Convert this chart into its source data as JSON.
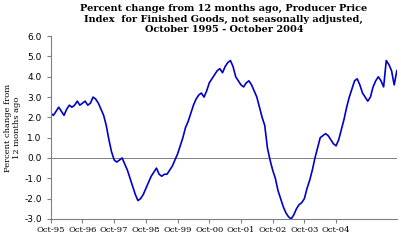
{
  "title": "Percent change from 12 months ago, Producer Price\nIndex  for Finished Goods, not seasonally adjusted,\nOctober 1995 - October 2004",
  "ylabel": "Percent change from\n12 months ago",
  "line_color": "#0000CC",
  "line_width": 1.2,
  "background_color": "#ffffff",
  "ylim": [
    -3.0,
    6.0
  ],
  "yticks": [
    -3.0,
    -2.0,
    -1.0,
    0.0,
    1.0,
    2.0,
    3.0,
    4.0,
    5.0,
    6.0
  ],
  "xtick_labels": [
    "Oct-95",
    "Oct-96",
    "Oct-97",
    "Oct-98",
    "Oct-99",
    "Oct-00",
    "Oct-01",
    "Oct-02",
    "Oct-03",
    "Oct-04"
  ],
  "values": [
    2.2,
    2.1,
    2.3,
    2.5,
    2.3,
    2.1,
    2.4,
    2.6,
    2.5,
    2.6,
    2.8,
    2.6,
    2.7,
    2.8,
    2.6,
    2.7,
    3.0,
    2.9,
    2.7,
    2.4,
    2.1,
    1.6,
    0.9,
    0.3,
    -0.1,
    -0.2,
    -0.1,
    0.0,
    -0.3,
    -0.6,
    -1.0,
    -1.4,
    -1.8,
    -2.1,
    -2.0,
    -1.8,
    -1.5,
    -1.2,
    -0.9,
    -0.7,
    -0.5,
    -0.8,
    -0.9,
    -0.8,
    -0.8,
    -0.6,
    -0.4,
    -0.1,
    0.2,
    0.6,
    1.0,
    1.5,
    1.8,
    2.2,
    2.6,
    2.9,
    3.1,
    3.2,
    3.0,
    3.3,
    3.7,
    3.9,
    4.1,
    4.3,
    4.4,
    4.2,
    4.5,
    4.7,
    4.8,
    4.5,
    4.0,
    3.8,
    3.6,
    3.5,
    3.7,
    3.8,
    3.6,
    3.3,
    3.0,
    2.5,
    2.0,
    1.6,
    0.5,
    -0.1,
    -0.6,
    -1.0,
    -1.6,
    -2.0,
    -2.4,
    -2.7,
    -2.9,
    -3.0,
    -2.8,
    -2.5,
    -2.3,
    -2.2,
    -2.0,
    -1.5,
    -1.1,
    -0.6,
    0.0,
    0.5,
    1.0,
    1.1,
    1.2,
    1.1,
    0.9,
    0.7,
    0.6,
    0.9,
    1.4,
    1.9,
    2.5,
    3.0,
    3.4,
    3.8,
    3.9,
    3.6,
    3.2,
    3.0,
    2.8,
    3.0,
    3.5,
    3.8,
    4.0,
    3.8,
    3.5,
    4.8,
    4.6,
    4.3,
    3.6,
    4.3
  ]
}
